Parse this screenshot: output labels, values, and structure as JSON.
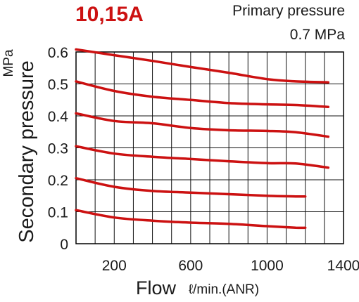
{
  "chart_data": {
    "type": "line",
    "title": "10,15A",
    "annotation_line1": "Primary pressure",
    "annotation_line2": "0.7 MPa",
    "ylabel": "Secondary pressure",
    "yunit": "MPa",
    "xlabel": "Flow",
    "xunit": "ℓ/min.(ANR)",
    "xlim": [
      0,
      1400
    ],
    "ylim": [
      0,
      0.6
    ],
    "xticks": [
      200,
      600,
      1000,
      1400
    ],
    "xtick_labels": [
      "200",
      "600",
      "1000",
      "1400"
    ],
    "yticks": [
      0,
      0.1,
      0.2,
      0.3,
      0.4,
      0.5,
      0.6
    ],
    "ytick_labels": [
      "0",
      "0.1",
      "0.2",
      "0.3",
      "0.4",
      "0.5",
      "0.6"
    ],
    "grid": true,
    "line_color": "#cc1111",
    "series": [
      {
        "points": [
          [
            0,
            0.608
          ],
          [
            200,
            0.59
          ],
          [
            400,
            0.572
          ],
          [
            600,
            0.553
          ],
          [
            800,
            0.535
          ],
          [
            1000,
            0.515
          ],
          [
            1150,
            0.508
          ],
          [
            1320,
            0.505
          ]
        ]
      },
      {
        "points": [
          [
            0,
            0.508
          ],
          [
            200,
            0.478
          ],
          [
            400,
            0.46
          ],
          [
            600,
            0.45
          ],
          [
            800,
            0.44
          ],
          [
            1000,
            0.436
          ],
          [
            1150,
            0.434
          ],
          [
            1320,
            0.428
          ]
        ]
      },
      {
        "points": [
          [
            0,
            0.408
          ],
          [
            200,
            0.384
          ],
          [
            400,
            0.377
          ],
          [
            600,
            0.362
          ],
          [
            800,
            0.355
          ],
          [
            1000,
            0.353
          ],
          [
            1150,
            0.349
          ],
          [
            1320,
            0.335
          ]
        ]
      },
      {
        "points": [
          [
            0,
            0.305
          ],
          [
            200,
            0.282
          ],
          [
            400,
            0.272
          ],
          [
            600,
            0.265
          ],
          [
            800,
            0.258
          ],
          [
            1000,
            0.252
          ],
          [
            1150,
            0.251
          ],
          [
            1320,
            0.238
          ]
        ]
      },
      {
        "points": [
          [
            0,
            0.205
          ],
          [
            200,
            0.178
          ],
          [
            400,
            0.165
          ],
          [
            600,
            0.16
          ],
          [
            800,
            0.155
          ],
          [
            1000,
            0.15
          ],
          [
            1150,
            0.148
          ],
          [
            1200,
            0.148
          ]
        ]
      },
      {
        "points": [
          [
            0,
            0.105
          ],
          [
            200,
            0.082
          ],
          [
            400,
            0.072
          ],
          [
            600,
            0.066
          ],
          [
            800,
            0.062
          ],
          [
            1000,
            0.055
          ],
          [
            1150,
            0.05
          ],
          [
            1200,
            0.05
          ]
        ]
      }
    ]
  }
}
